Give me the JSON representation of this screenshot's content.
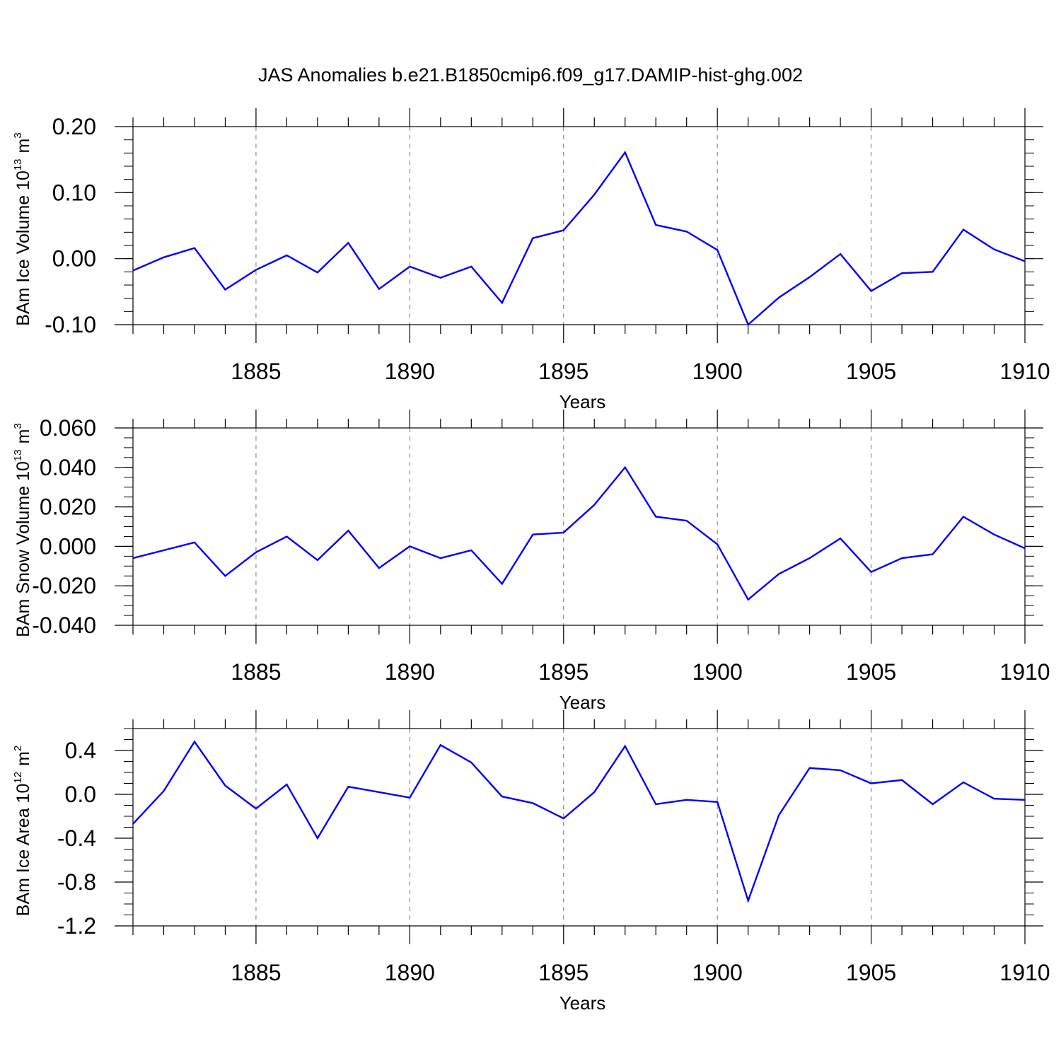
{
  "title": "JAS Anomalies b.e21.B1850cmip6.f09_g17.DAMIP-hist-ghg.002",
  "line_color": "#0000ff",
  "chart_data": [
    {
      "type": "line",
      "ylabel_main": "BAm Ice Volume 10",
      "ylabel_exp": "13",
      "ylabel_unit": "m",
      "ylabel_unit_exp": "3",
      "xlabel": "Years",
      "xlim": [
        1881,
        1910
      ],
      "ylim": [
        -0.1,
        0.2
      ],
      "x_ticks": [
        "1885",
        "1890",
        "1895",
        "1900",
        "1905",
        "1910"
      ],
      "y_ticks": [
        "0.20",
        "0.10",
        "0.00",
        "-0.10"
      ],
      "series": [
        {
          "name": "BAm Ice Volume",
          "x": [
            1881,
            1882,
            1883,
            1884,
            1885,
            1886,
            1887,
            1888,
            1889,
            1890,
            1891,
            1892,
            1893,
            1894,
            1895,
            1896,
            1897,
            1898,
            1899,
            1900,
            1901,
            1902,
            1903,
            1904,
            1905,
            1906,
            1907,
            1908,
            1909,
            1910
          ],
          "values": [
            -0.018,
            0.002,
            0.016,
            -0.047,
            -0.017,
            0.005,
            -0.021,
            0.024,
            -0.046,
            -0.012,
            -0.029,
            -0.012,
            -0.067,
            0.031,
            0.043,
            0.097,
            0.161,
            0.051,
            0.041,
            0.013,
            -0.1,
            -0.059,
            -0.028,
            0.007,
            -0.049,
            -0.022,
            -0.02,
            0.044,
            0.014,
            -0.004
          ]
        }
      ]
    },
    {
      "type": "line",
      "ylabel_main": "BAm Snow Volume 10",
      "ylabel_exp": "13",
      "ylabel_unit": "m",
      "ylabel_unit_exp": "3",
      "xlabel": "Years",
      "xlim": [
        1881,
        1910
      ],
      "ylim": [
        -0.04,
        0.06
      ],
      "x_ticks": [
        "1885",
        "1890",
        "1895",
        "1900",
        "1905",
        "1910"
      ],
      "y_ticks": [
        "0.060",
        "0.040",
        "0.020",
        "0.000",
        "-0.020",
        "-0.040"
      ],
      "series": [
        {
          "name": "BAm Snow Volume",
          "x": [
            1881,
            1882,
            1883,
            1884,
            1885,
            1886,
            1887,
            1888,
            1889,
            1890,
            1891,
            1892,
            1893,
            1894,
            1895,
            1896,
            1897,
            1898,
            1899,
            1900,
            1901,
            1902,
            1903,
            1904,
            1905,
            1906,
            1907,
            1908,
            1909,
            1910
          ],
          "values": [
            -0.006,
            -0.002,
            0.002,
            -0.015,
            -0.003,
            0.005,
            -0.007,
            0.008,
            -0.011,
            0.0,
            -0.006,
            -0.002,
            -0.019,
            0.006,
            0.007,
            0.021,
            0.04,
            0.015,
            0.013,
            0.001,
            -0.027,
            -0.014,
            -0.006,
            0.004,
            -0.013,
            -0.006,
            -0.004,
            0.015,
            0.006,
            -0.001
          ]
        }
      ]
    },
    {
      "type": "line",
      "ylabel_main": "BAm Ice Area 10",
      "ylabel_exp": "12",
      "ylabel_unit": "m",
      "ylabel_unit_exp": "2",
      "xlabel": "Years",
      "xlim": [
        1881,
        1910
      ],
      "ylim": [
        -1.2,
        0.6
      ],
      "x_ticks": [
        "1885",
        "1890",
        "1895",
        "1900",
        "1905",
        "1910"
      ],
      "y_ticks": [
        "0.4",
        "0.0",
        "-0.4",
        "-0.8",
        "-1.2"
      ],
      "series": [
        {
          "name": "BAm Ice Area",
          "x": [
            1881,
            1882,
            1883,
            1884,
            1885,
            1886,
            1887,
            1888,
            1889,
            1890,
            1891,
            1892,
            1893,
            1894,
            1895,
            1896,
            1897,
            1898,
            1899,
            1900,
            1901,
            1902,
            1903,
            1904,
            1905,
            1906,
            1907,
            1908,
            1909,
            1910
          ],
          "values": [
            -0.27,
            0.03,
            0.48,
            0.08,
            -0.13,
            0.09,
            -0.4,
            0.07,
            0.02,
            -0.03,
            0.45,
            0.29,
            -0.02,
            -0.08,
            -0.22,
            0.02,
            0.44,
            -0.09,
            -0.05,
            -0.07,
            -0.97,
            -0.19,
            0.24,
            0.22,
            0.1,
            0.13,
            -0.09,
            0.11,
            -0.04,
            -0.05
          ]
        }
      ]
    }
  ]
}
